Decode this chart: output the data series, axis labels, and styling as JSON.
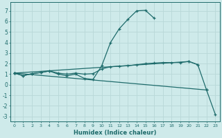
{
  "xlabel": "Humidex (Indice chaleur)",
  "background_color": "#ceeaea",
  "grid_color": "#b8d8d8",
  "line_color": "#1e6b6b",
  "x_values": [
    0,
    1,
    2,
    3,
    4,
    5,
    6,
    7,
    8,
    9,
    10,
    11,
    12,
    13,
    14,
    15,
    16,
    17,
    18,
    19,
    20,
    21,
    22,
    23
  ],
  "line_peak": [
    1.1,
    0.85,
    1.05,
    1.15,
    1.3,
    1.0,
    0.85,
    1.0,
    0.6,
    0.5,
    1.8,
    4.0,
    5.3,
    6.2,
    7.0,
    7.05,
    6.3,
    null,
    null,
    null,
    null,
    null,
    null,
    null
  ],
  "line_flat": [
    1.1,
    0.85,
    1.05,
    1.15,
    1.3,
    1.1,
    1.0,
    1.1,
    1.0,
    1.05,
    1.5,
    1.7,
    1.75,
    1.8,
    1.9,
    2.0,
    2.05,
    2.1,
    2.1,
    2.1,
    2.2,
    1.9,
    null,
    null
  ],
  "line_diag1": [
    1.1,
    null,
    null,
    null,
    null,
    null,
    null,
    null,
    null,
    null,
    null,
    null,
    null,
    null,
    null,
    null,
    null,
    null,
    null,
    null,
    2.2,
    1.9,
    -0.5,
    null
  ],
  "line_diag2": [
    1.1,
    null,
    null,
    null,
    null,
    null,
    null,
    null,
    null,
    null,
    null,
    null,
    null,
    null,
    null,
    null,
    null,
    null,
    null,
    null,
    null,
    null,
    -0.5,
    -2.8
  ],
  "ylim": [
    -3.5,
    7.8
  ],
  "xlim": [
    -0.5,
    23.5
  ],
  "yticks": [
    -3,
    -2,
    -1,
    0,
    1,
    2,
    3,
    4,
    5,
    6,
    7
  ],
  "xticks": [
    0,
    1,
    2,
    3,
    4,
    5,
    6,
    7,
    8,
    9,
    10,
    11,
    12,
    13,
    14,
    15,
    16,
    17,
    18,
    19,
    20,
    21,
    22,
    23
  ]
}
